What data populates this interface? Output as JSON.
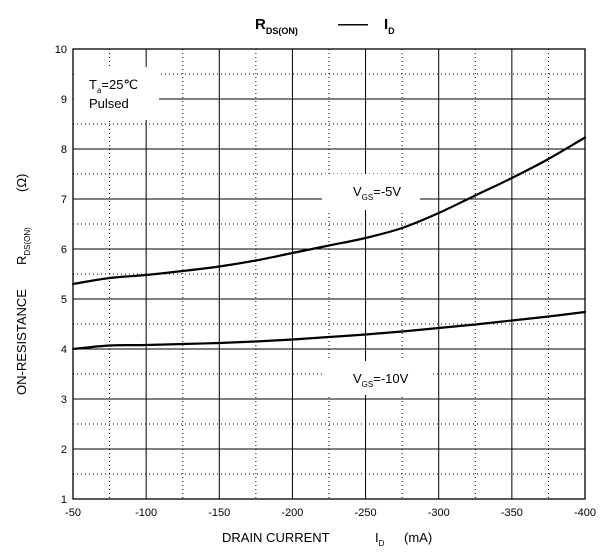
{
  "chart_data": {
    "type": "line",
    "title": {
      "main_symbol": "R",
      "main_sub": "DS(ON)",
      "separator": "——",
      "second_symbol": "I",
      "second_sub": "D"
    },
    "xlabel": {
      "text": "DRAIN CURRENT",
      "symbol": "I",
      "sub": "D",
      "unit": "(mA)"
    },
    "ylabel": {
      "text": "ON-RESISTANCE",
      "symbol": "R",
      "sub": "DS(ON)",
      "unit": "(Ω)"
    },
    "xlim": [
      -50,
      -400
    ],
    "ylim": [
      1,
      10
    ],
    "x_ticks": [
      -50,
      -100,
      -150,
      -200,
      -250,
      -300,
      -350,
      -400
    ],
    "y_ticks": [
      1,
      2,
      3,
      4,
      5,
      6,
      7,
      8,
      9,
      10
    ],
    "grid": {
      "major": true,
      "minor_dotted": true
    },
    "annotations": {
      "conditions": {
        "symbol": "T",
        "sub": "a",
        "value": "=25℃",
        "line2": "Pulsed"
      },
      "series_labels": [
        {
          "symbol": "V",
          "sub": "GS",
          "value": "=-5V"
        },
        {
          "symbol": "V",
          "sub": "GS",
          "value": "=-10V"
        }
      ]
    },
    "series": [
      {
        "x": [
          -50,
          -75,
          -100,
          -125,
          -150,
          -175,
          -200,
          -225,
          -250,
          -275,
          -300,
          -325,
          -350,
          -375,
          -400
        ],
        "values": [
          5.3,
          5.42,
          5.48,
          5.56,
          5.65,
          5.77,
          5.92,
          6.07,
          6.22,
          6.42,
          6.72,
          7.07,
          7.42,
          7.8,
          8.23
        ]
      },
      {
        "x": [
          -50,
          -75,
          -100,
          -125,
          -150,
          -175,
          -200,
          -225,
          -250,
          -275,
          -300,
          -325,
          -350,
          -375,
          -400
        ],
        "values": [
          4.0,
          4.07,
          4.08,
          4.1,
          4.12,
          4.15,
          4.19,
          4.24,
          4.29,
          4.35,
          4.42,
          4.49,
          4.57,
          4.65,
          4.74
        ]
      }
    ],
    "colors": {
      "line": "#000000",
      "grid": "#000000",
      "background": "#ffffff"
    }
  }
}
